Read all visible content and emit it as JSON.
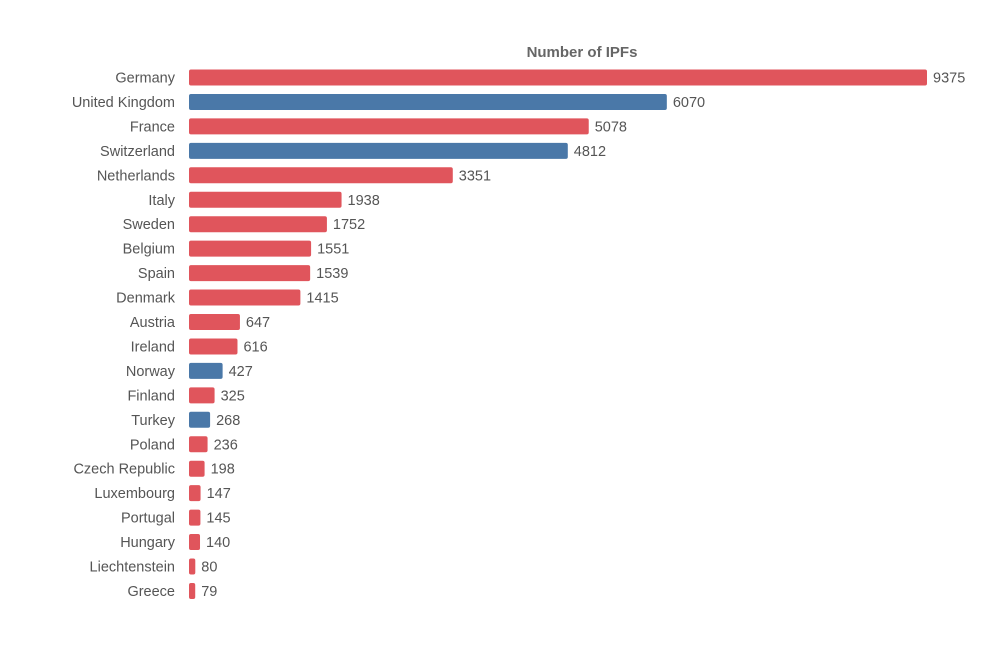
{
  "chart_data": {
    "type": "bar",
    "orientation": "horizontal",
    "title": "Number of IPFs",
    "xlabel": "",
    "ylabel": "",
    "xlim": [
      0,
      9375
    ],
    "grid": false,
    "legend": "none",
    "categories": [
      "Germany",
      "United Kingdom",
      "France",
      "Switzerland",
      "Netherlands",
      "Italy",
      "Sweden",
      "Belgium",
      "Spain",
      "Denmark",
      "Austria",
      "Ireland",
      "Norway",
      "Finland",
      "Turkey",
      "Poland",
      "Czech Republic",
      "Luxembourg",
      "Portugal",
      "Hungary",
      "Liechtenstein",
      "Greece"
    ],
    "values": [
      9375,
      6070,
      5078,
      4812,
      3351,
      1938,
      1752,
      1551,
      1539,
      1415,
      647,
      616,
      427,
      325,
      268,
      236,
      198,
      147,
      145,
      140,
      80,
      79
    ],
    "eu_member": [
      true,
      false,
      true,
      false,
      true,
      true,
      true,
      true,
      true,
      true,
      true,
      true,
      false,
      true,
      false,
      true,
      true,
      true,
      true,
      true,
      true,
      true
    ],
    "colors": {
      "eu": "#e0555c",
      "non_eu": "#4a78a8",
      "label_text": "#555555",
      "title_text": "#666666"
    }
  }
}
